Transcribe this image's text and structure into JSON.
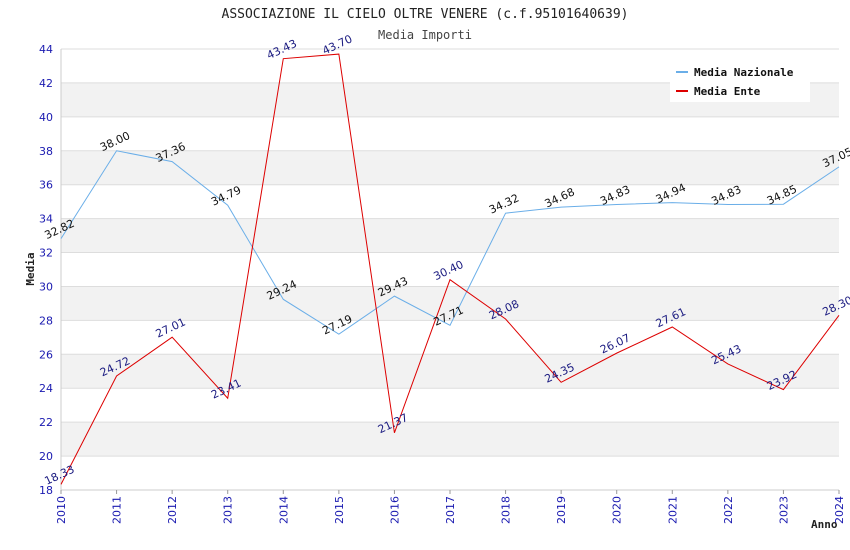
{
  "chart_data": {
    "type": "line",
    "title": "ASSOCIAZIONE IL CIELO OLTRE VENERE (c.f.95101640639)",
    "subtitle": "Media Importi",
    "xlabel": "Anno",
    "ylabel": "Media",
    "x": [
      2010,
      2011,
      2012,
      2013,
      2014,
      2015,
      2016,
      2017,
      2018,
      2019,
      2020,
      2021,
      2022,
      2023,
      2024
    ],
    "ylim": [
      18,
      44
    ],
    "yticks": [
      18,
      20,
      22,
      24,
      26,
      28,
      30,
      32,
      34,
      36,
      38,
      40,
      42,
      44
    ],
    "grid": "horizontal bands",
    "legend_position": "top-right",
    "series": [
      {
        "name": "Media Nazionale",
        "color": "#6aaee8",
        "values": [
          32.82,
          38.0,
          37.36,
          34.79,
          29.24,
          27.19,
          29.43,
          27.71,
          34.32,
          34.68,
          34.83,
          34.94,
          34.83,
          34.85,
          37.05
        ],
        "labels": [
          "32.82",
          "38.00",
          "37.36",
          "34.79",
          "29.24",
          "27.19",
          "29.43",
          "27.71",
          "34.32",
          "34.68",
          "34.83",
          "34.94",
          "34.83",
          "34.85",
          "37.05"
        ]
      },
      {
        "name": "Media Ente",
        "color": "#dd0000",
        "values": [
          18.33,
          24.72,
          27.01,
          23.41,
          43.43,
          43.7,
          21.37,
          30.4,
          28.08,
          24.35,
          26.07,
          27.61,
          25.43,
          23.92,
          28.3
        ],
        "labels": [
          "18.33",
          "24.72",
          "27.01",
          "23.41",
          "43.43",
          "43.70",
          "21.37",
          "30.40",
          "28.08",
          "24.35",
          "26.07",
          "27.61",
          "25.43",
          "23.92",
          "28.30"
        ]
      }
    ]
  }
}
